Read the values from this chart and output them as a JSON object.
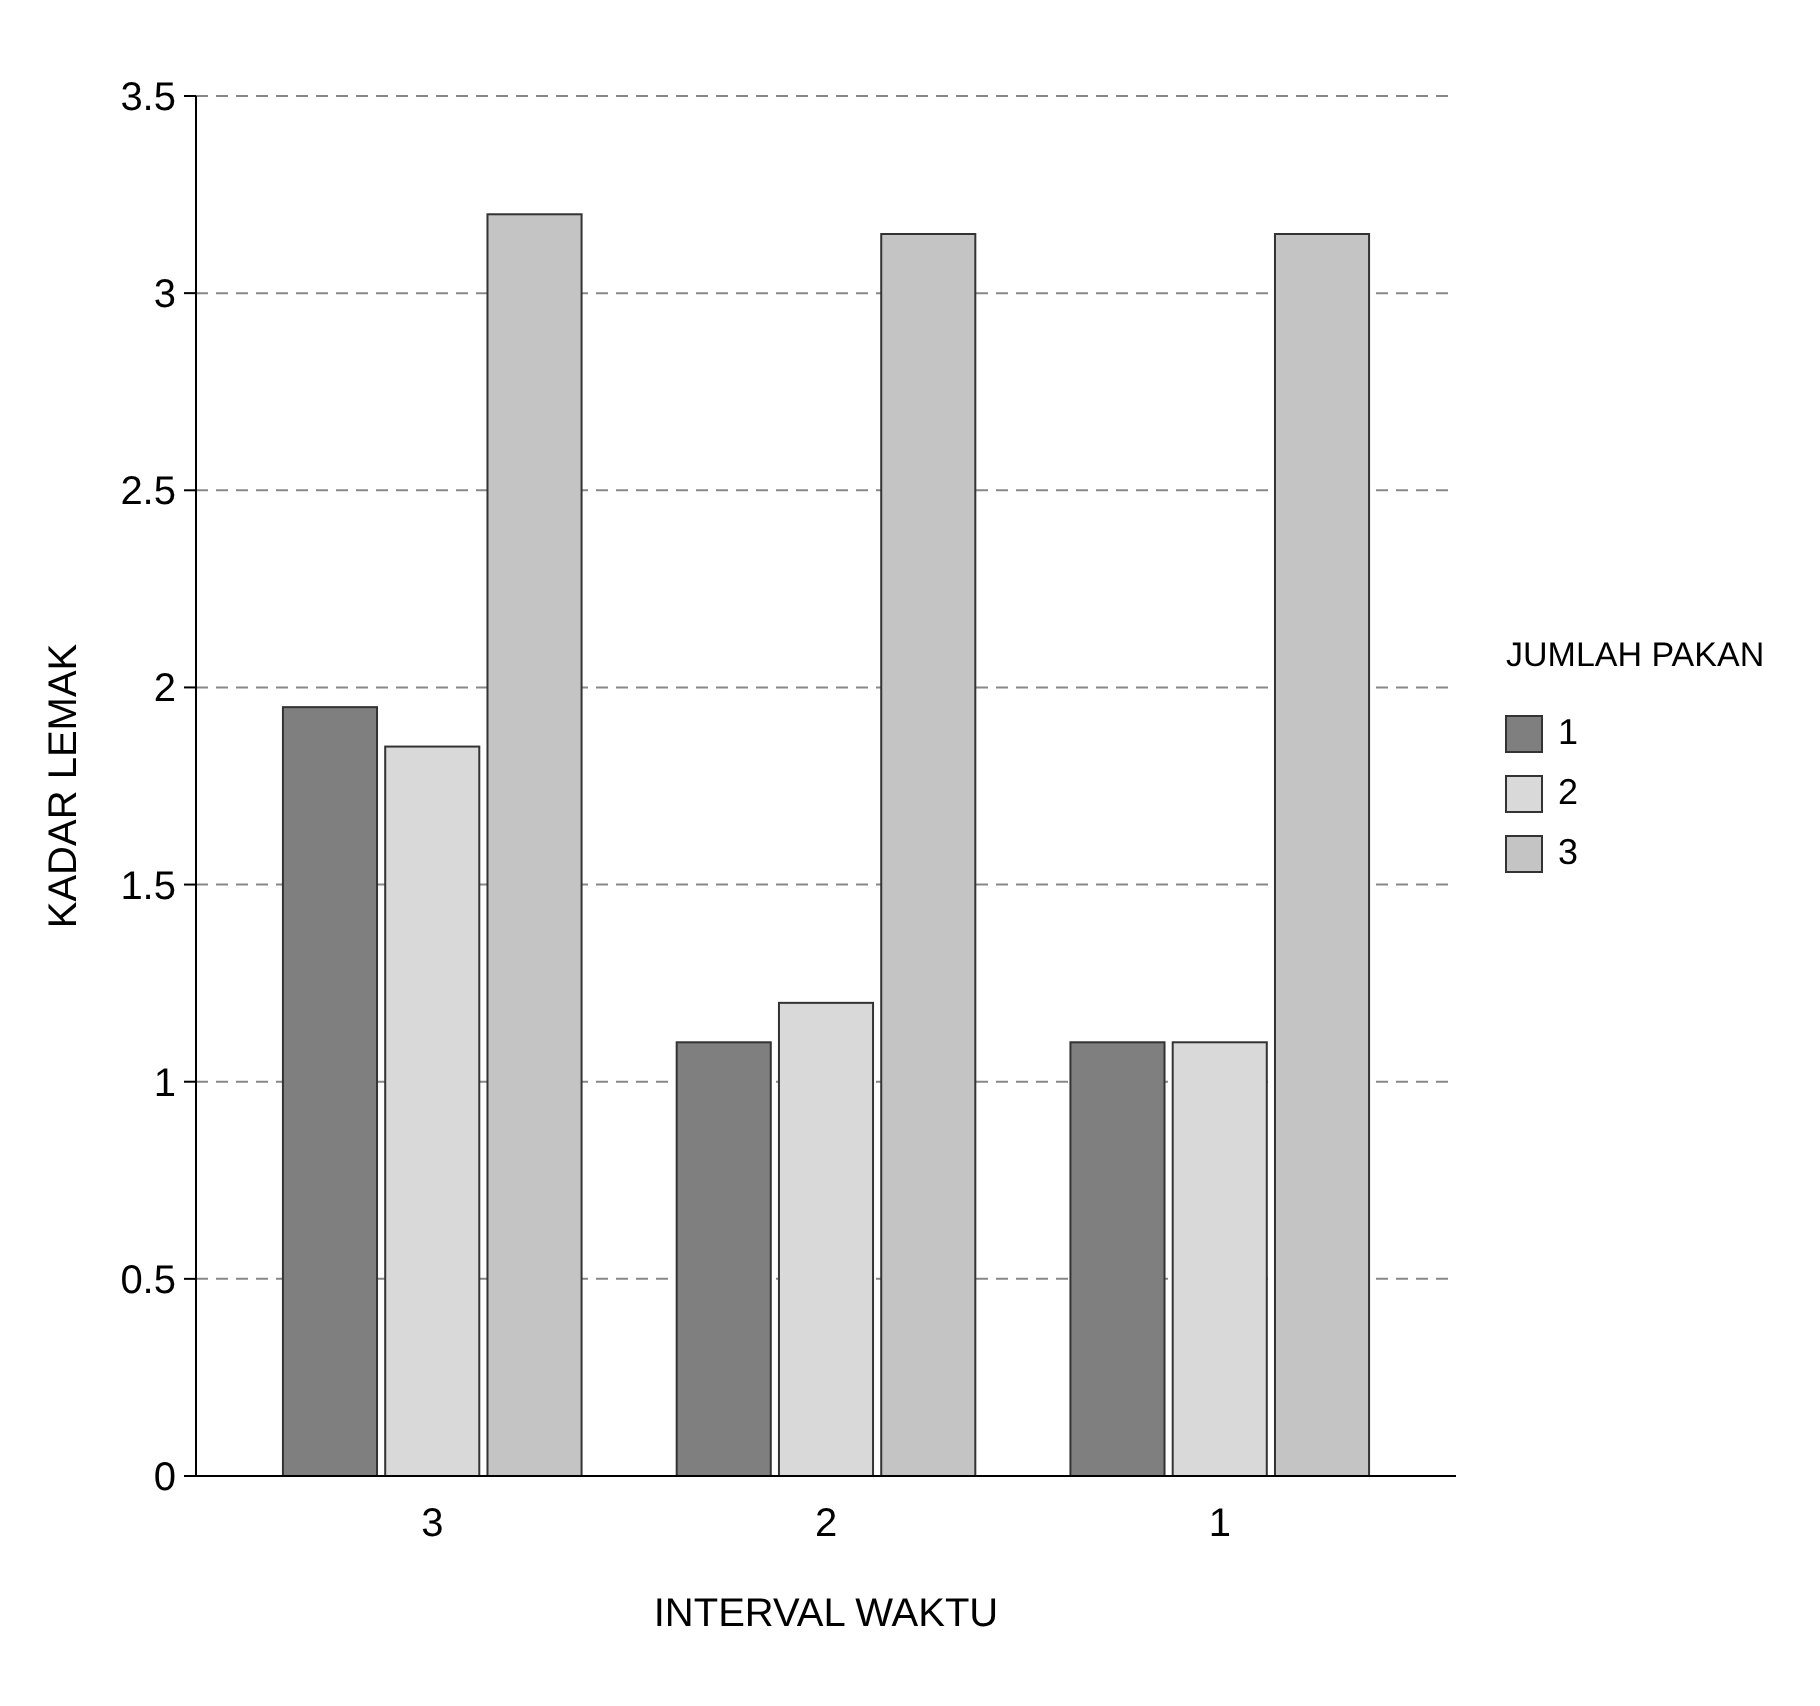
{
  "chart_data": {
    "type": "bar",
    "xlabel": "INTERVAL WAKTU",
    "ylabel": "KADAR LEMAK",
    "legend_title": "JUMLAH PAKAN",
    "categories": [
      "3",
      "2",
      "1"
    ],
    "series": [
      {
        "name": "1",
        "color": "#7f7f7f",
        "values": [
          1.95,
          1.1,
          1.1
        ]
      },
      {
        "name": "2",
        "color": "#d9d9d9",
        "values": [
          1.85,
          1.2,
          1.1
        ]
      },
      {
        "name": "3",
        "color": "#c4c4c4",
        "values": [
          3.2,
          3.15,
          3.15
        ]
      }
    ],
    "ylim": [
      0,
      3.5
    ],
    "yticks": [
      0,
      0.5,
      1,
      1.5,
      2,
      2.5,
      3,
      3.5
    ],
    "grid": "y",
    "line_style": "dashed",
    "legend": "right"
  }
}
